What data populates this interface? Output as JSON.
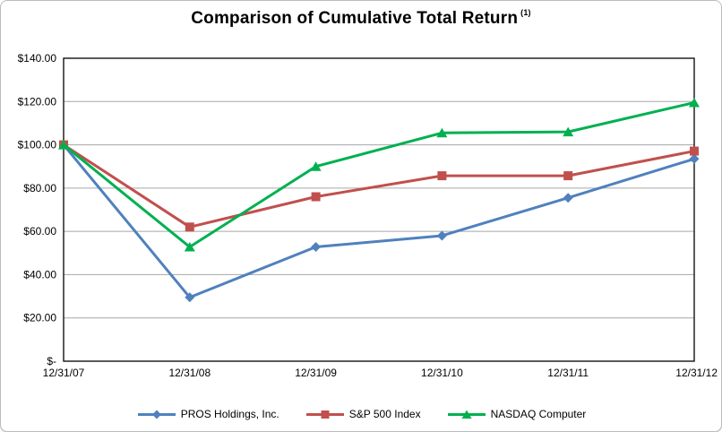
{
  "title": {
    "text": "Comparison of Cumulative Total Return",
    "footnote_marker": "(1)"
  },
  "chart_data": {
    "type": "line",
    "title": "Comparison of Cumulative Total Return (1)",
    "categories": [
      "12/31/07",
      "12/31/08",
      "12/31/09",
      "12/31/10",
      "12/31/11",
      "12/31/12"
    ],
    "series": [
      {
        "name": "PROS Holdings, Inc.",
        "marker": "diamond",
        "color": "#4F81BD",
        "values": [
          100.0,
          29.5,
          52.8,
          58.0,
          75.5,
          93.5
        ]
      },
      {
        "name": "S&P 500 Index",
        "marker": "square",
        "color": "#C0504D",
        "values": [
          100.0,
          62.0,
          76.0,
          85.7,
          85.7,
          97.1
        ]
      },
      {
        "name": "NASDAQ Computer",
        "marker": "triangle",
        "color": "#00B050",
        "values": [
          100.0,
          52.8,
          90.0,
          105.5,
          106.0,
          119.5
        ]
      }
    ],
    "y_axis": {
      "min": 0,
      "max": 140,
      "step": 20,
      "tick_labels": [
        "$-",
        "$20.00",
        "$40.00",
        "$60.00",
        "$80.00",
        "$100.00",
        "$120.00",
        "$140.00"
      ]
    },
    "xlabel": "",
    "ylabel": "",
    "grid": true,
    "legend_position": "bottom"
  },
  "colors": {
    "gridline": "#A6A6A6",
    "axis": "#000000",
    "background": "#FFFFFF",
    "frame_border": "#B9BDC1"
  }
}
